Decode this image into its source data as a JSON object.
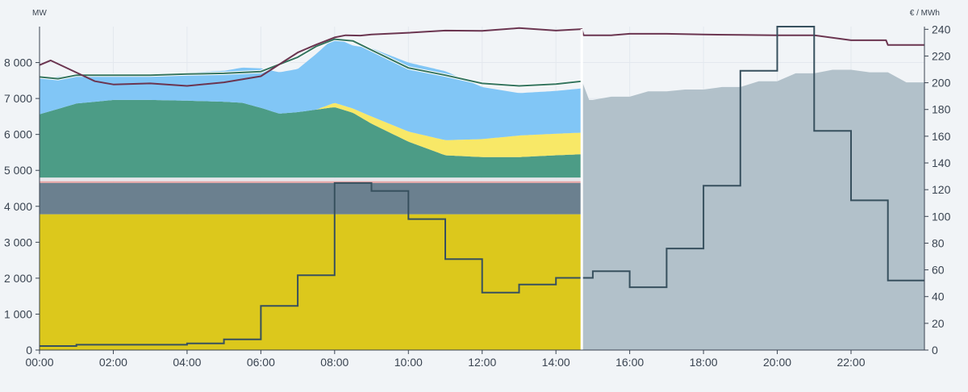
{
  "chart_data": {
    "type": "area",
    "x_unit": "time of day (hours)",
    "now_marker_x": 14.7,
    "left_axis": {
      "unit_label": "MW",
      "ylim": [
        0,
        9000
      ],
      "ticks": [
        0,
        1000,
        2000,
        3000,
        4000,
        5000,
        6000,
        7000,
        8000
      ],
      "tick_labels": [
        "0",
        "1 000",
        "2 000",
        "3 000",
        "4 000",
        "5 000",
        "6 000",
        "7 000",
        "8 000"
      ]
    },
    "right_axis": {
      "unit_label": "€ / MWh",
      "ylim": [
        0,
        242
      ],
      "ticks": [
        0,
        20,
        40,
        60,
        80,
        100,
        120,
        140,
        160,
        180,
        200,
        220,
        240
      ],
      "tick_labels": [
        "0",
        "20",
        "40",
        "60",
        "80",
        "100",
        "120",
        "140",
        "160",
        "180",
        "200",
        "220",
        "240"
      ]
    },
    "x_axis": {
      "xlim": [
        0,
        23.99
      ],
      "ticks": [
        0,
        2,
        4,
        6,
        8,
        10,
        12,
        14,
        16,
        18,
        20,
        22
      ],
      "tick_labels": [
        "00:00",
        "02:00",
        "04:00",
        "06:00",
        "08:00",
        "10:00",
        "12:00",
        "14:00",
        "16:00",
        "18:00",
        "20:00",
        "22:00"
      ]
    },
    "grid": true,
    "colors": {
      "nuclear": "#dcc81c",
      "thermal": "#6b808f",
      "pink_band": "#e8a5a5",
      "white_band": "#e6e6ea",
      "hydro": "#4c9c86",
      "solar": "#f8e867",
      "wind": "#81c6f6",
      "total_outline": "#35755f",
      "consumption_line": "#6b3550",
      "price_line": "#37505e",
      "forecast_area": "#b2c1ca"
    },
    "stack_series": [
      {
        "key": "nuclear",
        "x": [
          0,
          14.7
        ],
        "y": [
          3780,
          3780
        ]
      },
      {
        "key": "thermal",
        "x": [
          0,
          14.7
        ],
        "y": [
          870,
          870
        ]
      },
      {
        "key": "pink_band",
        "x": [
          0,
          14.7
        ],
        "y": [
          50,
          50
        ]
      },
      {
        "key": "white_band",
        "x": [
          0,
          14.7
        ],
        "y": [
          100,
          100
        ]
      },
      {
        "key": "hydro",
        "x": [
          0,
          1,
          2,
          3,
          4,
          5,
          5.5,
          6,
          6.5,
          7,
          8,
          8.5,
          9,
          10,
          11,
          12,
          13,
          14,
          14.7
        ],
        "y": [
          1760,
          2060,
          2160,
          2160,
          2140,
          2110,
          2080,
          1940,
          1780,
          1820,
          1960,
          1800,
          1500,
          1000,
          620,
          570,
          570,
          620,
          650
        ]
      },
      {
        "key": "solar",
        "x": [
          0,
          7.5,
          8,
          8.5,
          9,
          10,
          11,
          12,
          13,
          14,
          14.7
        ],
        "y": [
          0,
          0,
          120,
          120,
          200,
          280,
          420,
          500,
          600,
          600,
          600
        ]
      },
      {
        "key": "wind",
        "x": [
          0,
          1,
          2,
          3,
          4,
          5,
          6,
          7,
          7.5,
          8,
          8.5,
          9,
          10,
          11,
          12,
          13,
          14,
          14.7
        ],
        "y": [
          1000,
          800,
          650,
          720,
          780,
          860,
          1100,
          1200,
          1550,
          1820,
          1750,
          1900,
          1920,
          1920,
          1450,
          1180,
          1190,
          1230
        ]
      }
    ],
    "total_outline": {
      "x": [
        0,
        0.5,
        1,
        2,
        3,
        4,
        5,
        6,
        7,
        7.5,
        8,
        8.5,
        9,
        10,
        11,
        12,
        13,
        14,
        14.7
      ],
      "y": [
        7600,
        7550,
        7650,
        7650,
        7650,
        7680,
        7700,
        7750,
        8150,
        8450,
        8650,
        8600,
        8350,
        7850,
        7650,
        7420,
        7350,
        7400,
        7480
      ]
    },
    "consumption_series": {
      "x": [
        0,
        0.3,
        0.8,
        1.5,
        2,
        3,
        4,
        5,
        6,
        7,
        7.5,
        8,
        8.3,
        8.7,
        9,
        10,
        11,
        12,
        13,
        14,
        14.7,
        14.75,
        15,
        15.5,
        16,
        17,
        18,
        19,
        20,
        21,
        22,
        22.95,
        23,
        23.99
      ],
      "y": [
        7930,
        8060,
        7820,
        7480,
        7390,
        7420,
        7350,
        7450,
        7620,
        8280,
        8500,
        8700,
        8760,
        8750,
        8780,
        8830,
        8890,
        8880,
        8960,
        8890,
        8930,
        8760,
        8760,
        8760,
        8800,
        8800,
        8780,
        8770,
        8760,
        8760,
        8620,
        8620,
        8490,
        8490
      ]
    },
    "forecast_area": {
      "x": [
        14.7,
        14.9,
        15,
        15.5,
        16,
        16.5,
        17,
        17.5,
        18,
        18.5,
        19,
        19.5,
        20,
        20.5,
        21,
        21.5,
        22,
        22.5,
        23,
        23.5,
        23.99
      ],
      "y": [
        7500,
        6960,
        6960,
        7050,
        7050,
        7200,
        7200,
        7250,
        7250,
        7320,
        7320,
        7480,
        7480,
        7700,
        7700,
        7800,
        7800,
        7730,
        7730,
        7450,
        7450
      ]
    },
    "price_series": {
      "interpolation": "step-after",
      "x": [
        0,
        1,
        2,
        3,
        4,
        5,
        6,
        7,
        8,
        9,
        10,
        11,
        12,
        13,
        14,
        15,
        16,
        17,
        18,
        19,
        20,
        21,
        22,
        23,
        23.99
      ],
      "y": [
        3,
        4,
        4,
        4,
        5,
        8,
        33,
        56,
        125,
        119,
        98,
        68,
        43,
        49,
        54,
        59,
        47,
        76,
        123,
        209,
        242,
        164,
        112,
        52,
        52
      ]
    }
  }
}
